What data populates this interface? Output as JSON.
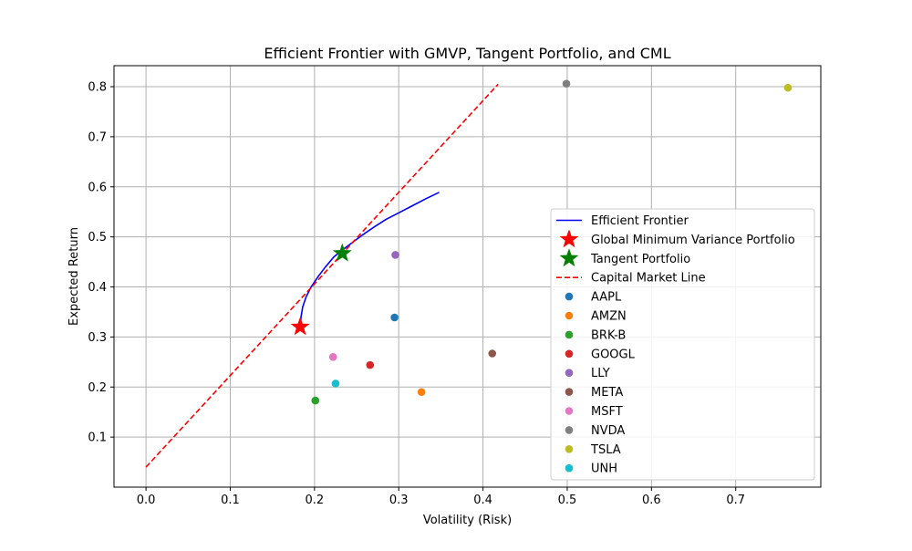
{
  "chart_data": {
    "type": "scatter",
    "title": "Efficient Frontier with GMVP, Tangent Portfolio, and CML",
    "xlabel": "Volatility (Risk)",
    "ylabel": "Expected Return",
    "xlim": [
      -0.038,
      0.801
    ],
    "ylim": [
      0.0,
      0.842
    ],
    "xticks": [
      0.0,
      0.1,
      0.2,
      0.3,
      0.4,
      0.5,
      0.6,
      0.7
    ],
    "yticks": [
      0.1,
      0.2,
      0.3,
      0.4,
      0.5,
      0.6,
      0.7,
      0.8
    ],
    "grid": true,
    "legend_position": "right",
    "efficient_frontier": {
      "name": "Efficient Frontier",
      "color": "#0000ff",
      "x": [
        0.183,
        0.184,
        0.186,
        0.19,
        0.196,
        0.204,
        0.213,
        0.223,
        0.234,
        0.246,
        0.258,
        0.271,
        0.285,
        0.3,
        0.316,
        0.332,
        0.348
      ],
      "y": [
        0.32,
        0.34,
        0.36,
        0.38,
        0.4,
        0.42,
        0.44,
        0.46,
        0.475,
        0.49,
        0.505,
        0.52,
        0.535,
        0.548,
        0.562,
        0.576,
        0.589
      ]
    },
    "gmvp": {
      "name": "Global Minimum Variance Portfolio",
      "color": "#ff0000",
      "x": 0.183,
      "y": 0.32
    },
    "tangent": {
      "name": "Tangent Portfolio",
      "color": "#008000",
      "x": 0.233,
      "y": 0.467
    },
    "cml": {
      "name": "Capital Market Line",
      "color": "#ff0000",
      "x": [
        0.0,
        0.418
      ],
      "y": [
        0.04,
        0.805
      ]
    },
    "series": [
      {
        "name": "AAPL",
        "color": "#1f77b4",
        "x": 0.295,
        "y": 0.339
      },
      {
        "name": "AMZN",
        "color": "#ff7f0e",
        "x": 0.327,
        "y": 0.19
      },
      {
        "name": "BRK-B",
        "color": "#2ca02c",
        "x": 0.201,
        "y": 0.173
      },
      {
        "name": "GOOGL",
        "color": "#d62728",
        "x": 0.266,
        "y": 0.244
      },
      {
        "name": "LLY",
        "color": "#9467bd",
        "x": 0.296,
        "y": 0.464
      },
      {
        "name": "META",
        "color": "#8c564b",
        "x": 0.411,
        "y": 0.267
      },
      {
        "name": "MSFT",
        "color": "#e377c2",
        "x": 0.222,
        "y": 0.26
      },
      {
        "name": "NVDA",
        "color": "#7f7f7f",
        "x": 0.499,
        "y": 0.806
      },
      {
        "name": "TSLA",
        "color": "#bcbd22",
        "x": 0.762,
        "y": 0.798
      },
      {
        "name": "UNH",
        "color": "#17becf",
        "x": 0.225,
        "y": 0.207
      }
    ]
  }
}
